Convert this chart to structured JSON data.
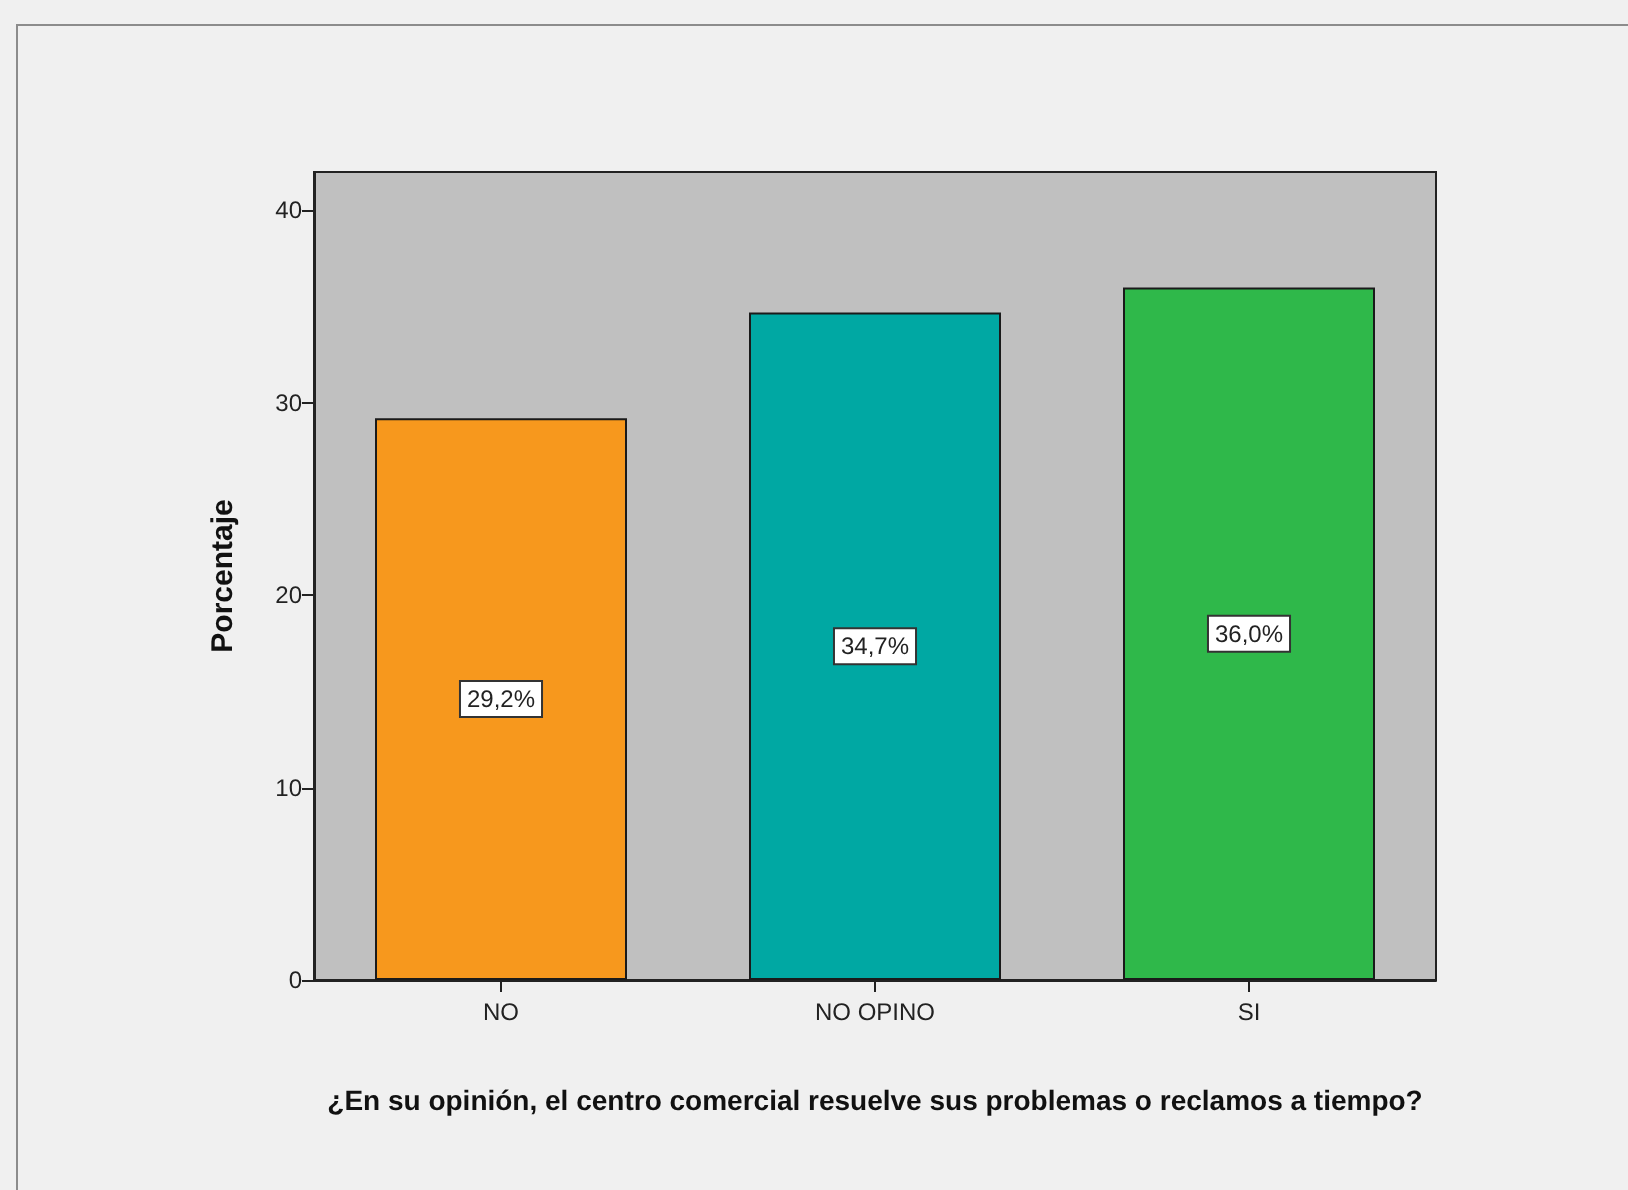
{
  "chart_data": {
    "type": "bar",
    "xlabel": "¿En su opinión, el centro comercial resuelve sus problemas o reclamos a tiempo?",
    "ylabel": "Porcentaje",
    "categories": [
      "NO",
      "NO OPINO",
      "SI"
    ],
    "values": [
      29.2,
      34.7,
      36.0
    ],
    "colors": [
      "#f7981d",
      "#00a8a3",
      "#2fb84a"
    ],
    "value_labels": [
      "29,2%",
      "34,7%",
      "36,0%"
    ],
    "ylim": [
      0,
      42
    ],
    "yticks": [
      0,
      10,
      20,
      30,
      40
    ],
    "grid": false
  }
}
